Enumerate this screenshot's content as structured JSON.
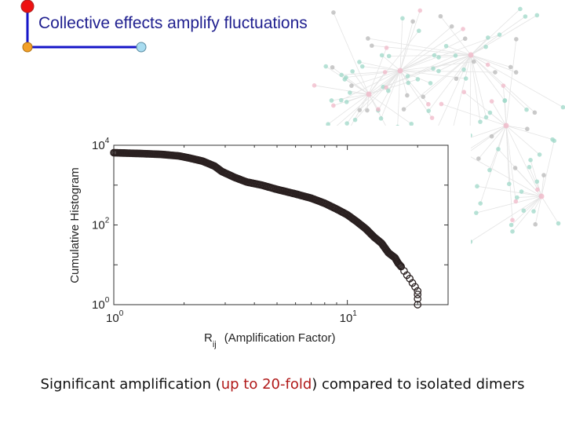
{
  "slide": {
    "title": "Collective effects amplify fluctuations",
    "caption_pre": "Significant amplification (",
    "caption_highlight": "up to 20-fold",
    "caption_post": ") compared to isolated dimers"
  },
  "colors": {
    "title": "#1f1f8f",
    "highlight": "#b01818",
    "frame_line": "#1515c8",
    "node_red": "#ee1111",
    "node_orange": "#f2a028",
    "node_blue": "#a8dcf0",
    "network_node": "#9fd8c8",
    "network_node_pink": "#f0b8c8",
    "network_node_gray": "#b8b8b8"
  },
  "chart_data": {
    "type": "scatter",
    "xscale": "log",
    "yscale": "log",
    "xlim": [
      1,
      27
    ],
    "ylim": [
      1,
      10000
    ],
    "xlabel_main": "R",
    "xlabel_sub": "ij",
    "xlabel_rest": "(Amplification Factor)",
    "ylabel": "Cumulative Histogram",
    "xticks": [
      {
        "base": "10",
        "exp": "0",
        "value": 1
      },
      {
        "base": "10",
        "exp": "1",
        "value": 10
      }
    ],
    "yticks": [
      {
        "base": "10",
        "exp": "0",
        "value": 1
      },
      {
        "base": "10",
        "exp": "2",
        "value": 100
      },
      {
        "base": "10",
        "exp": "4",
        "value": 10000
      }
    ],
    "marker": "open-circle",
    "series": [
      {
        "x": [
          1.0,
          1.3,
          1.6,
          1.9,
          2.1,
          2.4,
          2.7,
          2.9,
          3.3,
          3.7,
          4.3,
          5.0,
          6.0,
          7.0,
          8.0,
          9.0,
          10.0,
          11.0,
          12.0,
          13.0,
          14.0,
          15.0,
          16.0,
          16.5,
          17.0,
          17.5,
          18.0,
          18.5,
          19.0,
          19.5,
          20.0,
          20.0,
          20.0,
          20.0
        ],
        "y": [
          6500,
          6200,
          5900,
          5400,
          4800,
          4000,
          3000,
          2200,
          1550,
          1200,
          1000,
          780,
          600,
          470,
          350,
          250,
          180,
          120,
          80,
          50,
          35,
          20,
          15,
          11,
          9,
          7,
          5.5,
          4.5,
          3.5,
          2.8,
          2.2,
          1.8,
          1.4,
          1.0
        ]
      }
    ]
  }
}
